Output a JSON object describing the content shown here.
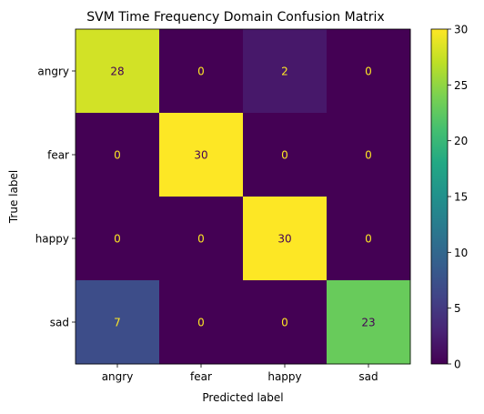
{
  "chart_data": {
    "type": "heatmap",
    "title": "SVM Time Frequency Domain Confusion Matrix",
    "xlabel": "Predicted label",
    "ylabel": "True label",
    "x_categories": [
      "angry",
      "fear",
      "happy",
      "sad"
    ],
    "y_categories": [
      "angry",
      "fear",
      "happy",
      "sad"
    ],
    "values": [
      [
        28,
        0,
        2,
        0
      ],
      [
        0,
        30,
        0,
        0
      ],
      [
        0,
        0,
        30,
        0
      ],
      [
        7,
        0,
        0,
        23
      ]
    ],
    "colorbar": {
      "min": 0,
      "max": 30,
      "ticks": [
        0,
        5,
        10,
        15,
        20,
        25,
        30
      ]
    },
    "colormap": "viridis",
    "cell_text_colors": {
      "on_dark": "#fde725",
      "on_light": "#440154"
    },
    "grid": false
  }
}
